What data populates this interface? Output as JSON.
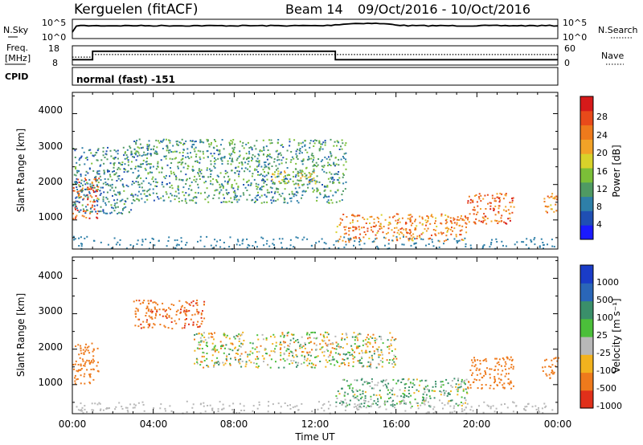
{
  "header": {
    "station": "Kerguelen (fitACF)",
    "beam": "Beam 14",
    "dates": "09/Oct/2016 - 10/Oct/2016"
  },
  "noise_panel": {
    "left_label": "N.Sky",
    "right_label": "N.Search",
    "left_ticks": [
      "10^5",
      "10^0"
    ],
    "right_ticks": [
      "10^5",
      "10^0"
    ]
  },
  "freq_panel": {
    "left_label_line1": "Freq.",
    "left_label_line2": "[MHz]",
    "right_label": "Nave",
    "left_ticks": [
      "18",
      "8"
    ],
    "right_ticks": [
      "60",
      "0"
    ],
    "freq_mhz": [
      {
        "x": 0,
        "v": 10.5
      },
      {
        "x": 1.0,
        "v": 10.5
      },
      {
        "x": 1.0,
        "v": 16
      },
      {
        "x": 13.0,
        "v": 16
      },
      {
        "x": 13.0,
        "v": 10.5
      },
      {
        "x": 24,
        "v": 10.5
      }
    ],
    "nave": [
      {
        "x": 0,
        "v": 25
      },
      {
        "x": 1.0,
        "v": 25
      },
      {
        "x": 1.0,
        "v": 35
      },
      {
        "x": 24,
        "v": 35
      }
    ]
  },
  "cpid": {
    "label": "CPID",
    "mode": "normal (fast) -151"
  },
  "x_axis": {
    "title": "Time UT",
    "ticks": [
      "00:00",
      "04:00",
      "08:00",
      "12:00",
      "16:00",
      "20:00",
      "00:00"
    ]
  },
  "power_panel": {
    "ylabel": "Slant Range [km]",
    "yticks": [
      "4000",
      "3000",
      "2000",
      "1000"
    ],
    "colorbar_label": "Power [dB]",
    "colorbar_ticks": [
      "28",
      "24",
      "20",
      "16",
      "12",
      "8",
      "4"
    ],
    "colors": [
      "#1a1aff",
      "#1f4fb3",
      "#2e7fa8",
      "#4f9a63",
      "#7bbf38",
      "#d8d22a",
      "#f2a227",
      "#ee7a1c",
      "#e84a1a",
      "#d61a1a"
    ]
  },
  "velocity_panel": {
    "ylabel": "Slant Range [km]",
    "yticks": [
      "4000",
      "3000",
      "2000",
      "1000"
    ],
    "colorbar_label": "Velocity [m s⁻¹]",
    "colorbar_ticks": [
      "1000",
      "500",
      "100",
      "25",
      "-25",
      "-100",
      "-500",
      "-1000"
    ],
    "colors": [
      "#1a3cc8",
      "#2a66b8",
      "#3a8f6a",
      "#4bbf3a",
      "#b8b8b8",
      "#f2b21e",
      "#ee7a1c",
      "#e0301a"
    ]
  },
  "chart_data": [
    {
      "type": "heatmap",
      "title": "Power [dB]",
      "xlabel": "Time UT",
      "ylabel": "Slant Range [km]",
      "xlim_hours": [
        0,
        24
      ],
      "ylim_km": [
        180,
        4600
      ],
      "clim_db": [
        0,
        30
      ],
      "scatter_features": [
        {
          "t_start": 0.0,
          "t_end": 1.3,
          "r_start_km": 1050,
          "r_end_km": 2200,
          "power_db": 24
        },
        {
          "t_start": 0.0,
          "t_end": 3.0,
          "r_start_km": 1200,
          "r_end_km": 3100,
          "power_db": 8
        },
        {
          "t_start": 3.0,
          "t_end": 13.5,
          "r_start_km": 1500,
          "r_end_km": 3300,
          "power_db": 10
        },
        {
          "t_start": 9.8,
          "t_end": 12.0,
          "r_start_km": 2000,
          "r_end_km": 2400,
          "power_db": 16
        },
        {
          "t_start": 13.0,
          "t_end": 19.5,
          "r_start_km": 400,
          "r_end_km": 1200,
          "power_db": 22
        },
        {
          "t_start": 19.5,
          "t_end": 21.8,
          "r_start_km": 900,
          "r_end_km": 1800,
          "power_db": 24
        },
        {
          "t_start": 23.2,
          "t_end": 24.0,
          "r_start_km": 1200,
          "r_end_km": 1800,
          "power_db": 22
        }
      ]
    },
    {
      "type": "heatmap",
      "title": "Velocity [m s⁻¹]",
      "xlabel": "Time UT",
      "ylabel": "Slant Range [km]",
      "xlim_hours": [
        0,
        24
      ],
      "ylim_km": [
        180,
        4600
      ],
      "clim_ms": [
        -1000,
        1000
      ],
      "scatter_features": [
        {
          "t_start": 0.0,
          "t_end": 1.3,
          "r_start_km": 1050,
          "r_end_km": 2200,
          "velocity_ms": -300
        },
        {
          "t_start": 3.0,
          "t_end": 6.5,
          "r_start_km": 2600,
          "r_end_km": 3400,
          "velocity_ms": -400
        },
        {
          "t_start": 6.0,
          "t_end": 16.0,
          "r_start_km": 1500,
          "r_end_km": 2500,
          "velocity_ms": 0
        },
        {
          "t_start": 13.0,
          "t_end": 19.5,
          "r_start_km": 400,
          "r_end_km": 1200,
          "velocity_ms": 80
        },
        {
          "t_start": 19.5,
          "t_end": 21.8,
          "r_start_km": 900,
          "r_end_km": 1800,
          "velocity_ms": -250
        },
        {
          "t_start": 23.2,
          "t_end": 24.0,
          "r_start_km": 1200,
          "r_end_km": 1800,
          "velocity_ms": -250
        }
      ]
    }
  ]
}
